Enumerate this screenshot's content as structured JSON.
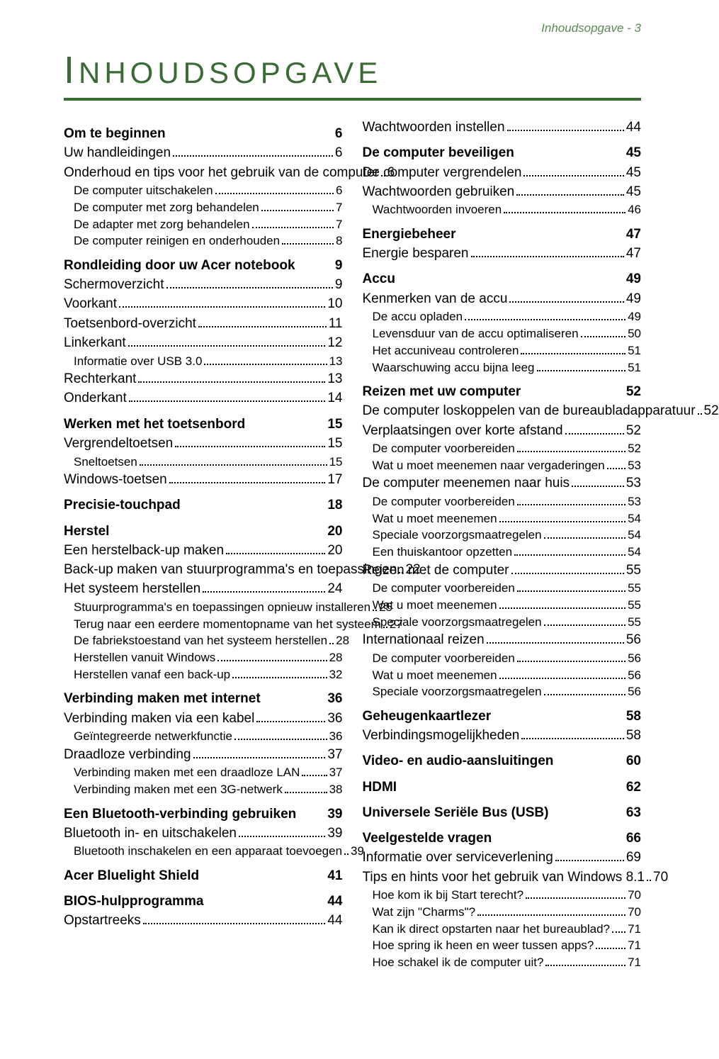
{
  "colors": {
    "accent": "#3a6b35",
    "header": "#5b8a55",
    "text": "#000000",
    "background": "#ffffff"
  },
  "typography": {
    "title_fontsize": 42,
    "title_first_fontsize": 54,
    "title_letter_spacing": 6,
    "body_fontsize_lvl0": 19,
    "body_fontsize_lvl1": 19,
    "body_fontsize_lvl2": 17
  },
  "header": "Inhoudsopgave - 3",
  "title_first": "I",
  "title_rest": "NHOUDSOPGAVE",
  "toc_left": [
    {
      "lvl": 0,
      "label": "Om te beginnen",
      "page": "6"
    },
    {
      "lvl": 1,
      "label": "Uw handleidingen",
      "page": "6",
      "dots": true
    },
    {
      "lvl": 1,
      "label": "Onderhoud en tips voor het gebruik van de computer",
      "page": "6",
      "dots": true
    },
    {
      "lvl": 2,
      "label": "De computer uitschakelen",
      "page": "6",
      "dots": true
    },
    {
      "lvl": 2,
      "label": "De computer met zorg behandelen",
      "page": "7",
      "dots": true
    },
    {
      "lvl": 2,
      "label": "De adapter met zorg behandelen",
      "page": "7",
      "dots": true
    },
    {
      "lvl": 2,
      "label": "De computer reinigen en onderhouden",
      "page": "8",
      "dots": true
    },
    {
      "lvl": 0,
      "label": "Rondleiding door uw Acer notebook",
      "page": "9"
    },
    {
      "lvl": 1,
      "label": "Schermoverzicht",
      "page": "9",
      "dots": true
    },
    {
      "lvl": 1,
      "label": "Voorkant",
      "page": "10",
      "dots": true
    },
    {
      "lvl": 1,
      "label": "Toetsenbord-overzicht",
      "page": "11",
      "dots": true
    },
    {
      "lvl": 1,
      "label": "Linkerkant",
      "page": "12",
      "dots": true
    },
    {
      "lvl": 2,
      "label": "Informatie over USB 3.0",
      "page": "13",
      "dots": true
    },
    {
      "lvl": 1,
      "label": "Rechterkant",
      "page": "13",
      "dots": true
    },
    {
      "lvl": 1,
      "label": "Onderkant",
      "page": "14",
      "dots": true
    },
    {
      "lvl": 0,
      "label": "Werken met het toetsenbord",
      "page": "15"
    },
    {
      "lvl": 1,
      "label": "Vergrendeltoetsen",
      "page": "15",
      "dots": true
    },
    {
      "lvl": 2,
      "label": "Sneltoetsen",
      "page": "15",
      "dots": true
    },
    {
      "lvl": 1,
      "label": "Windows-toetsen",
      "page": "17",
      "dots": true
    },
    {
      "lvl": 0,
      "label": "Precisie-touchpad",
      "page": "18"
    },
    {
      "lvl": 0,
      "label": "Herstel",
      "page": "20"
    },
    {
      "lvl": 1,
      "label": "Een herstelback-up maken",
      "page": "20",
      "dots": true
    },
    {
      "lvl": 1,
      "label": "Back-up maken van stuurprogramma's en toepassingen",
      "page": "22",
      "dots": true
    },
    {
      "lvl": 1,
      "label": "Het systeem herstellen",
      "page": "24",
      "dots": true
    },
    {
      "lvl": 2,
      "label": "Stuurprogramma's en toepassingen opnieuw installeren",
      "page": "25",
      "dots": true
    },
    {
      "lvl": 2,
      "label": "Terug naar een eerdere momentopname van het systeem",
      "page": "27",
      "dots": true
    },
    {
      "lvl": 2,
      "label": "De fabriekstoestand van het systeem herstellen",
      "page": "28",
      "dots": true
    },
    {
      "lvl": 2,
      "label": "Herstellen vanuit Windows",
      "page": "28",
      "dots": true
    },
    {
      "lvl": 2,
      "label": "Herstellen vanaf een back-up",
      "page": "32",
      "dots": true
    },
    {
      "lvl": 0,
      "label": "Verbinding maken met internet",
      "page": "36"
    },
    {
      "lvl": 1,
      "label": "Verbinding maken via een kabel",
      "page": "36",
      "dots": true
    },
    {
      "lvl": 2,
      "label": "Geïntegreerde netwerkfunctie",
      "page": "36",
      "dots": true
    },
    {
      "lvl": 1,
      "label": "Draadloze verbinding",
      "page": "37",
      "dots": true
    },
    {
      "lvl": 2,
      "label": "Verbinding maken met een draadloze LAN",
      "page": "37",
      "dots": true
    },
    {
      "lvl": 2,
      "label": "Verbinding maken met een 3G-netwerk",
      "page": "38",
      "dots": true
    },
    {
      "lvl": 0,
      "label": "Een Bluetooth-verbinding gebruiken",
      "page": "39"
    },
    {
      "lvl": 1,
      "label": "Bluetooth in- en uitschakelen",
      "page": "39",
      "dots": true
    },
    {
      "lvl": 2,
      "label": "Bluetooth inschakelen en een apparaat toevoegen",
      "page": "39",
      "dots": true
    },
    {
      "lvl": 0,
      "label": "Acer Bluelight Shield",
      "page": "41"
    },
    {
      "lvl": 0,
      "label": "BIOS-hulpprogramma",
      "page": "44"
    },
    {
      "lvl": 1,
      "label": "Opstartreeks",
      "page": "44",
      "dots": true
    }
  ],
  "toc_right": [
    {
      "lvl": 1,
      "label": "Wachtwoorden instellen",
      "page": "44",
      "dots": true
    },
    {
      "lvl": 0,
      "label": "De computer beveiligen",
      "page": "45"
    },
    {
      "lvl": 1,
      "label": "De computer vergrendelen",
      "page": "45",
      "dots": true
    },
    {
      "lvl": 1,
      "label": "Wachtwoorden gebruiken",
      "page": "45",
      "dots": true
    },
    {
      "lvl": 2,
      "label": "Wachtwoorden invoeren",
      "page": "46",
      "dots": true
    },
    {
      "lvl": 0,
      "label": "Energiebeheer",
      "page": "47"
    },
    {
      "lvl": 1,
      "label": "Energie besparen",
      "page": "47",
      "dots": true
    },
    {
      "lvl": 0,
      "label": "Accu",
      "page": "49"
    },
    {
      "lvl": 1,
      "label": "Kenmerken van de accu",
      "page": "49",
      "dots": true
    },
    {
      "lvl": 2,
      "label": "De accu opladen",
      "page": "49",
      "dots": true
    },
    {
      "lvl": 2,
      "label": "Levensduur van de accu optimaliseren",
      "page": "50",
      "dots": true
    },
    {
      "lvl": 2,
      "label": "Het accuniveau controleren",
      "page": "51",
      "dots": true
    },
    {
      "lvl": 2,
      "label": "Waarschuwing accu bijna leeg",
      "page": "51",
      "dots": true
    },
    {
      "lvl": 0,
      "label": "Reizen met uw computer",
      "page": "52"
    },
    {
      "lvl": 1,
      "label": "De computer loskoppelen van de bureaubladapparatuur",
      "page": "52",
      "dots": true
    },
    {
      "lvl": 1,
      "label": "Verplaatsingen over korte afstand",
      "page": "52",
      "dots": true
    },
    {
      "lvl": 2,
      "label": "De computer voorbereiden",
      "page": "52",
      "dots": true
    },
    {
      "lvl": 2,
      "label": "Wat u moet meenemen naar vergaderingen",
      "page": "53",
      "dots": true
    },
    {
      "lvl": 1,
      "label": "De computer meenemen naar huis",
      "page": "53",
      "dots": true
    },
    {
      "lvl": 2,
      "label": "De computer voorbereiden",
      "page": "53",
      "dots": true
    },
    {
      "lvl": 2,
      "label": "Wat u moet meenemen",
      "page": "54",
      "dots": true
    },
    {
      "lvl": 2,
      "label": "Speciale voorzorgsmaatregelen",
      "page": "54",
      "dots": true
    },
    {
      "lvl": 2,
      "label": "Een thuiskantoor opzetten",
      "page": "54",
      "dots": true
    },
    {
      "lvl": 1,
      "label": "Reizen met de computer",
      "page": "55",
      "dots": true
    },
    {
      "lvl": 2,
      "label": "De computer voorbereiden",
      "page": "55",
      "dots": true
    },
    {
      "lvl": 2,
      "label": "Wat u moet meenemen",
      "page": "55",
      "dots": true
    },
    {
      "lvl": 2,
      "label": "Speciale voorzorgsmaatregelen",
      "page": "55",
      "dots": true
    },
    {
      "lvl": 1,
      "label": "Internationaal reizen",
      "page": "56",
      "dots": true
    },
    {
      "lvl": 2,
      "label": "De computer voorbereiden",
      "page": "56",
      "dots": true
    },
    {
      "lvl": 2,
      "label": "Wat u moet meenemen",
      "page": "56",
      "dots": true
    },
    {
      "lvl": 2,
      "label": "Speciale voorzorgsmaatregelen",
      "page": "56",
      "dots": true
    },
    {
      "lvl": 0,
      "label": "Geheugenkaartlezer",
      "page": "58"
    },
    {
      "lvl": 1,
      "label": "Verbindingsmogelijkheden",
      "page": "58",
      "dots": true
    },
    {
      "lvl": 0,
      "label": "Video- en audio-aansluitingen",
      "page": "60"
    },
    {
      "lvl": 0,
      "label": "HDMI",
      "page": "62"
    },
    {
      "lvl": 0,
      "label": "Universele Seriële Bus (USB)",
      "page": "63"
    },
    {
      "lvl": 0,
      "label": "Veelgestelde vragen",
      "page": "66"
    },
    {
      "lvl": 1,
      "label": "Informatie over serviceverlening",
      "page": "69",
      "dots": true
    },
    {
      "lvl": 1,
      "label": "Tips en hints voor het gebruik van Windows 8.1",
      "page": "70",
      "dots": true
    },
    {
      "lvl": 2,
      "label": "Hoe kom ik bij Start terecht?",
      "page": "70",
      "dots": true
    },
    {
      "lvl": 2,
      "label": "Wat zijn \"Charms\"?",
      "page": "70",
      "dots": true
    },
    {
      "lvl": 2,
      "label": "Kan ik direct opstarten naar het bureaublad?",
      "page": "71",
      "dots": true
    },
    {
      "lvl": 2,
      "label": "Hoe spring ik heen en weer tussen apps?",
      "page": "71",
      "dots": true
    },
    {
      "lvl": 2,
      "label": "Hoe schakel ik de computer uit?",
      "page": "71",
      "dots": true
    }
  ]
}
